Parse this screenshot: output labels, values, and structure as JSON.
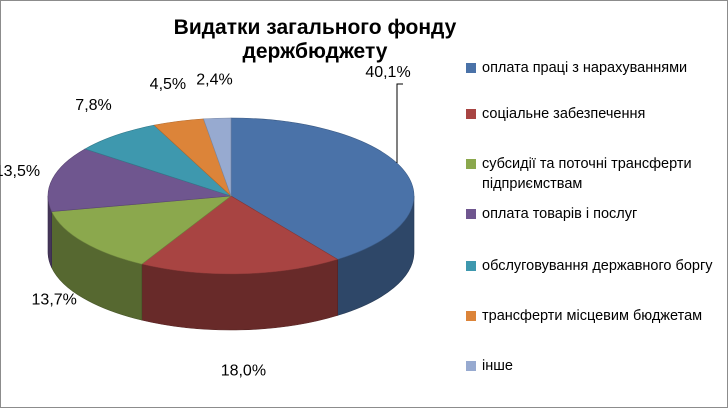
{
  "chart_data": {
    "type": "pie",
    "title": "Видатки загального фонду держбюджету",
    "labels": [
      "оплата праці з нарахуваннями",
      "соціальне забезпечення",
      "субсидії та поточні трансферти підприємствам",
      "оплата товарів і послуг",
      "обслуговування державного боргу",
      "трансферти місцевим бюджетам",
      "інше"
    ],
    "values": [
      40.1,
      18.0,
      13.7,
      13.5,
      7.8,
      4.5,
      2.4
    ],
    "value_labels": [
      "40,1%",
      "18,0%",
      "13,7%",
      "13,5%",
      "7,8%",
      "4,5%",
      "2,4%"
    ],
    "colors": [
      "#4a72a8",
      "#a84442",
      "#8ba84d",
      "#6f568f",
      "#3e98ae",
      "#dc8439",
      "#97aad0"
    ],
    "style": "3d",
    "legend_position": "right"
  }
}
